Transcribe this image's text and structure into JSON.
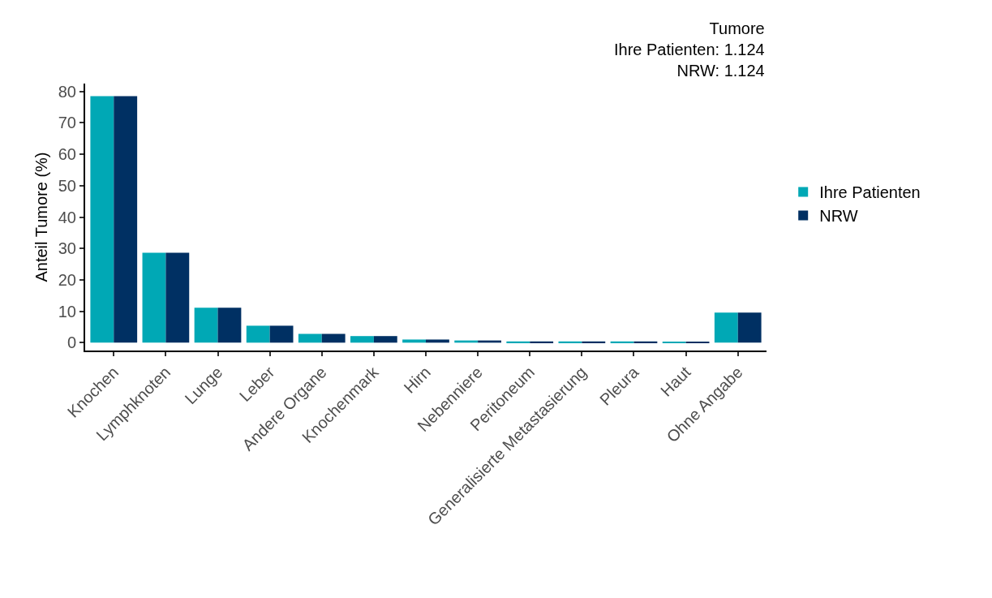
{
  "chart_data": {
    "type": "bar",
    "title": "Tumore\nIhre Patienten: 1.124\nNRW: 1.124",
    "ylabel": "Anteil Tumore (%)",
    "categories": [
      "Knochen",
      "Lymphknoten",
      "Lunge",
      "Leber",
      "Andere Organe",
      "Knochenmark",
      "Hirn",
      "Nebenniere",
      "Peritoneum",
      "Generalisierte Metastasierung",
      "Pleura",
      "Haut",
      "Ohne Angabe"
    ],
    "series": [
      {
        "name": "Ihre Patienten",
        "color": "#00a8b5",
        "values": [
          78.5,
          28.6,
          11.1,
          5.4,
          2.8,
          2.1,
          1.0,
          0.7,
          0.4,
          0.4,
          0.4,
          0.2,
          9.6
        ]
      },
      {
        "name": "NRW",
        "color": "#003063",
        "values": [
          78.5,
          28.6,
          11.1,
          5.4,
          2.8,
          2.1,
          1.0,
          0.7,
          0.4,
          0.4,
          0.4,
          0.2,
          9.6
        ]
      }
    ],
    "ylim": [
      -2.5,
      82.5
    ],
    "yticks": [
      0,
      10,
      20,
      30,
      40,
      50,
      60,
      70,
      80
    ],
    "legend": "right"
  }
}
